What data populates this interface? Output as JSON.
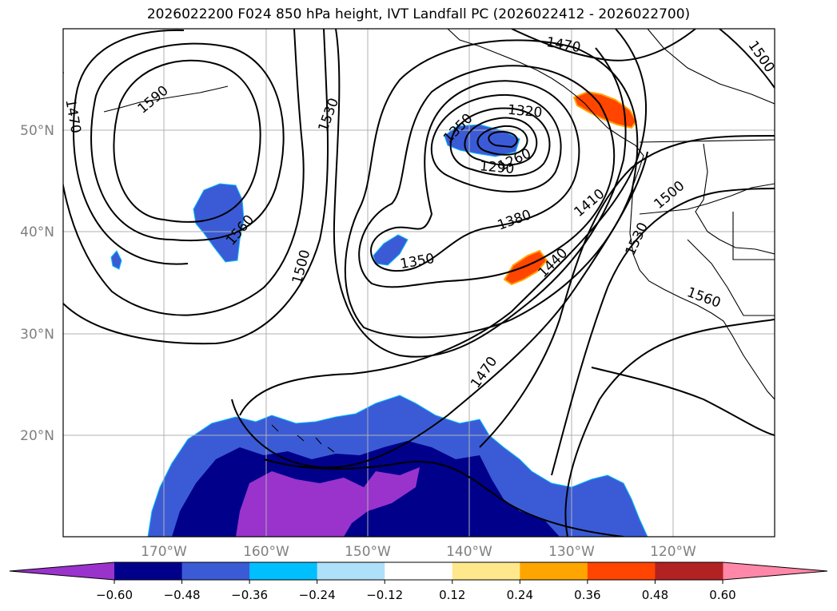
{
  "title": "2026022200 F024 850 hPa height, IVT Landfall PC (2026022412 - 2026022700)",
  "latitude_labels": [
    "50°N",
    "40°N",
    "30°N",
    "20°N"
  ],
  "longitude_labels": [
    "170°W",
    "160°W",
    "150°W",
    "140°W",
    "130°W",
    "120°W"
  ],
  "contour_labels": [
    "1470",
    "1470",
    "1500",
    "1590",
    "1530",
    "1560",
    "1500",
    "1350",
    "1320",
    "1290",
    "1260",
    "1350",
    "1380",
    "1410",
    "1440",
    "1500",
    "1530",
    "1560",
    "1470"
  ],
  "colorbar": {
    "ticks": [
      "−0.60",
      "−0.48",
      "−0.36",
      "−0.24",
      "−0.12",
      "0.12",
      "0.24",
      "0.36",
      "0.48",
      "0.60"
    ],
    "colors": [
      "#9933cc",
      "#00008b",
      "#3b5bd6",
      "#00bfff",
      "#aee0fa",
      "#ffffff",
      "#ffe88c",
      "#ffa500",
      "#ff4500",
      "#b22222",
      "#ff88a8"
    ]
  }
}
